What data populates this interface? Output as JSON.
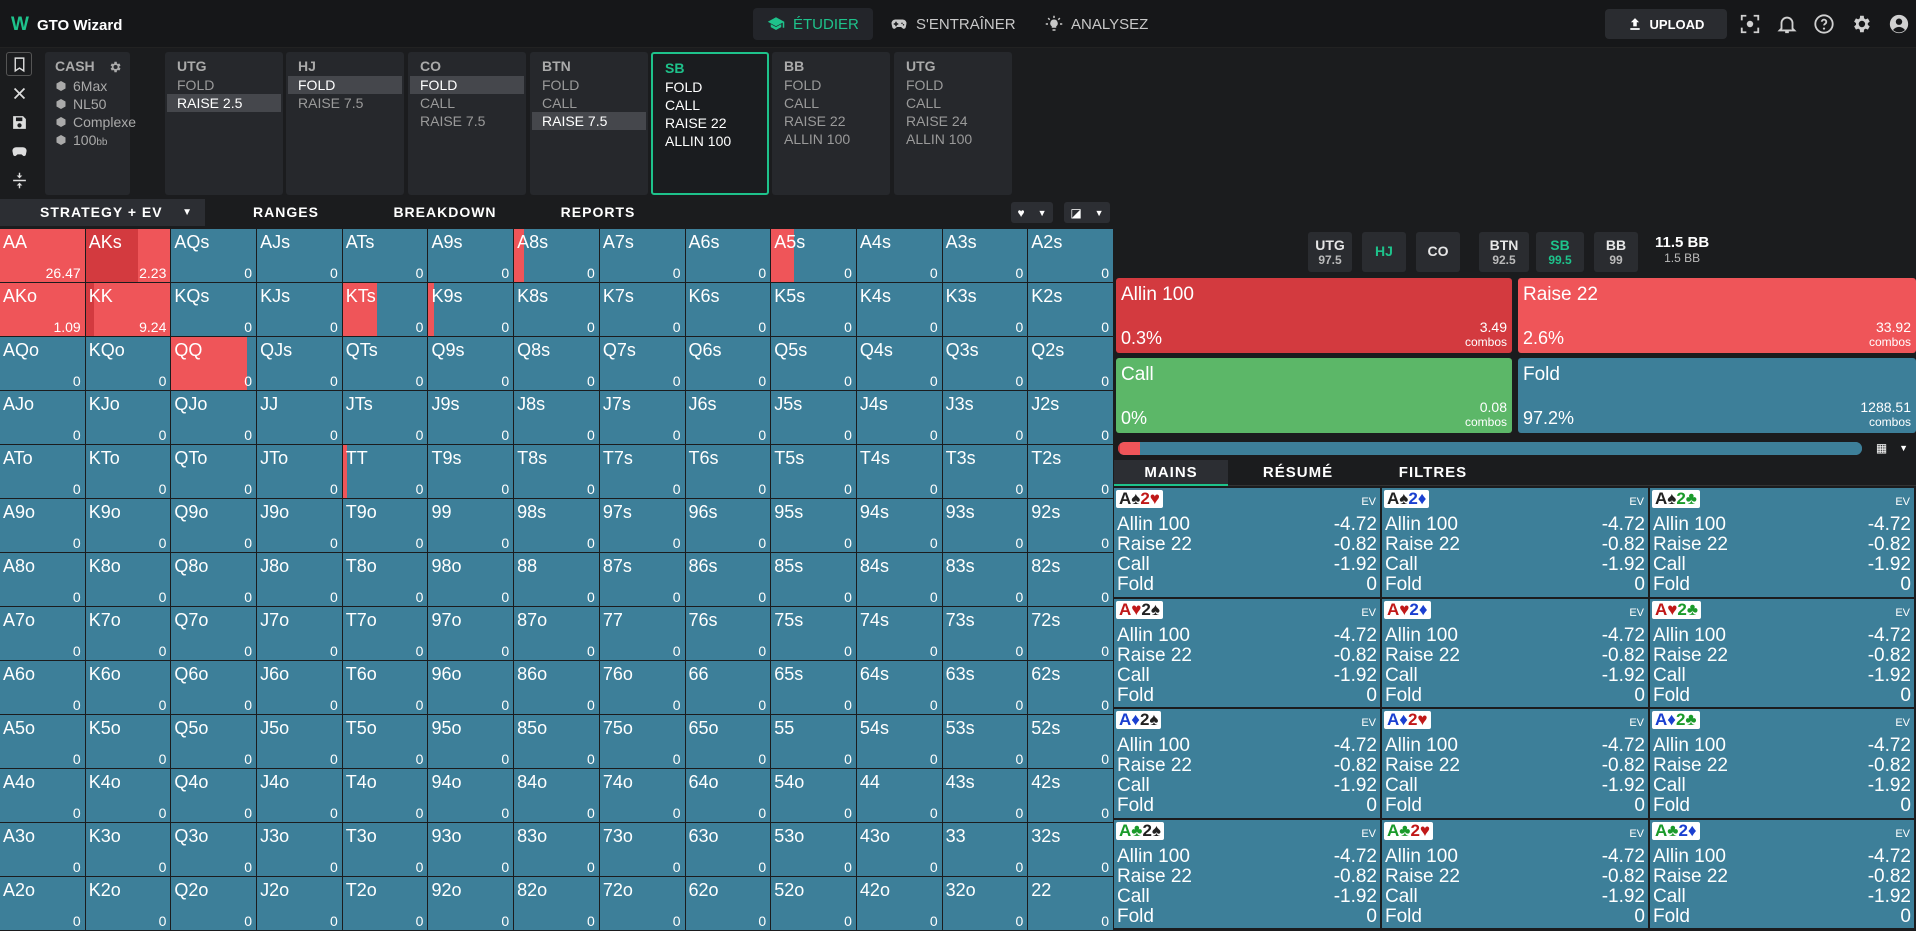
{
  "app": {
    "name": "GTO Wizard"
  },
  "nav": {
    "study": "ÉTUDIER",
    "train": "S'ENTRAÎNER",
    "analyze": "ANALYSEZ",
    "upload": "UPLOAD"
  },
  "cash": {
    "title": "CASH",
    "items": [
      "6Max",
      "NL50",
      "Complexe",
      "100"
    ],
    "bb": "bb"
  },
  "cards": [
    {
      "pos": "UTG",
      "opts": [
        "FOLD",
        "RAISE 2.5"
      ],
      "sel": 1
    },
    {
      "pos": "HJ",
      "opts": [
        "FOLD",
        "RAISE 7.5"
      ],
      "sel": 0
    },
    {
      "pos": "CO",
      "opts": [
        "FOLD",
        "CALL",
        "RAISE 7.5"
      ],
      "sel": 0
    },
    {
      "pos": "BTN",
      "opts": [
        "FOLD",
        "CALL",
        "RAISE 7.5"
      ],
      "sel": 2
    },
    {
      "pos": "SB",
      "opts": [
        "FOLD",
        "CALL",
        "RAISE 22",
        "ALLIN 100"
      ],
      "sel": -1
    },
    {
      "pos": "BB",
      "opts": [
        "FOLD",
        "CALL",
        "RAISE 22",
        "ALLIN 100"
      ],
      "sel": -1
    },
    {
      "pos": "UTG",
      "opts": [
        "FOLD",
        "CALL",
        "RAISE 24",
        "ALLIN 100"
      ],
      "sel": -1
    }
  ],
  "tabs": [
    "STRATEGY + EV",
    "RANGES",
    "BREAKDOWN",
    "REPORTS"
  ],
  "grid": [
    [
      "AA",
      "AKs",
      "AQs",
      "AJs",
      "ATs",
      "A9s",
      "A8s",
      "A7s",
      "A6s",
      "A5s",
      "A4s",
      "A3s",
      "A2s"
    ],
    [
      "AKo",
      "KK",
      "KQs",
      "KJs",
      "KTs",
      "K9s",
      "K8s",
      "K7s",
      "K6s",
      "K5s",
      "K4s",
      "K3s",
      "K2s"
    ],
    [
      "AQo",
      "KQo",
      "QQ",
      "QJs",
      "QTs",
      "Q9s",
      "Q8s",
      "Q7s",
      "Q6s",
      "Q5s",
      "Q4s",
      "Q3s",
      "Q2s"
    ],
    [
      "AJo",
      "KJo",
      "QJo",
      "JJ",
      "JTs",
      "J9s",
      "J8s",
      "J7s",
      "J6s",
      "J5s",
      "J4s",
      "J3s",
      "J2s"
    ],
    [
      "ATo",
      "KTo",
      "QTo",
      "JTo",
      "TT",
      "T9s",
      "T8s",
      "T7s",
      "T6s",
      "T5s",
      "T4s",
      "T3s",
      "T2s"
    ],
    [
      "A9o",
      "K9o",
      "Q9o",
      "J9o",
      "T9o",
      "99",
      "98s",
      "97s",
      "96s",
      "95s",
      "94s",
      "93s",
      "92s"
    ],
    [
      "A8o",
      "K8o",
      "Q8o",
      "J8o",
      "T8o",
      "98o",
      "88",
      "87s",
      "86s",
      "85s",
      "84s",
      "83s",
      "82s"
    ],
    [
      "A7o",
      "K7o",
      "Q7o",
      "J7o",
      "T7o",
      "97o",
      "87o",
      "77",
      "76s",
      "75s",
      "74s",
      "73s",
      "72s"
    ],
    [
      "A6o",
      "K6o",
      "Q6o",
      "J6o",
      "T6o",
      "96o",
      "86o",
      "76o",
      "66",
      "65s",
      "64s",
      "63s",
      "62s"
    ],
    [
      "A5o",
      "K5o",
      "Q5o",
      "J5o",
      "T5o",
      "95o",
      "85o",
      "75o",
      "65o",
      "55",
      "54s",
      "53s",
      "52s"
    ],
    [
      "A4o",
      "K4o",
      "Q4o",
      "J4o",
      "T4o",
      "94o",
      "84o",
      "74o",
      "64o",
      "54o",
      "44",
      "43s",
      "42s"
    ],
    [
      "A3o",
      "K3o",
      "Q3o",
      "J3o",
      "T3o",
      "93o",
      "83o",
      "73o",
      "63o",
      "53o",
      "43o",
      "33",
      "32s"
    ],
    [
      "A2o",
      "K2o",
      "Q2o",
      "J2o",
      "T2o",
      "92o",
      "82o",
      "72o",
      "62o",
      "52o",
      "42o",
      "32o",
      "22"
    ]
  ],
  "grid_ev_default": "0",
  "grid_special": {
    "AA": {
      "ev": "26.47",
      "red": 1.0,
      "dark": 0
    },
    "AKs": {
      "ev": "2.23",
      "red": 1.0,
      "dark": 0.62
    },
    "A8s": {
      "ev": "0",
      "red": 0.12,
      "dark": 0
    },
    "A5s": {
      "ev": "0",
      "red": 0.27,
      "dark": 0
    },
    "AKo": {
      "ev": "1.09",
      "red": 1.0,
      "dark": 0
    },
    "KK": {
      "ev": "9.24",
      "red": 1.0,
      "dark": 0.1
    },
    "KTs": {
      "ev": "0",
      "red": 0.4,
      "dark": 0
    },
    "K9s": {
      "ev": "0",
      "red": 0.07,
      "dark": 0
    },
    "QQ": {
      "ev": "0",
      "red": 0.89,
      "dark": 0
    },
    "TT": {
      "ev": "0",
      "red": 0.05,
      "dark": 0
    }
  },
  "seats": [
    {
      "pos": "UTG",
      "stack": "97.5"
    },
    {
      "pos": "HJ",
      "stack": ""
    },
    {
      "pos": "CO",
      "stack": ""
    },
    {
      "pos": "BTN",
      "stack": "92.5"
    },
    {
      "pos": "SB",
      "stack": "99.5"
    },
    {
      "pos": "BB",
      "stack": "99"
    }
  ],
  "pot": {
    "main": "11.5 BB",
    "sub": "1.5 BB"
  },
  "actions": [
    {
      "name": "Allin 100",
      "pct": "0.3%",
      "combos": "3.49",
      "label": "combos",
      "color": "#d33a3f"
    },
    {
      "name": "Raise 22",
      "pct": "2.6%",
      "combos": "33.92",
      "label": "combos",
      "color": "#ef5559"
    },
    {
      "name": "Call",
      "pct": "0%",
      "combos": "0.08",
      "label": "combos",
      "color": "#5cb768"
    },
    {
      "name": "Fold",
      "pct": "97.2%",
      "combos": "1288.51",
      "label": "combos",
      "color": "#3d7f99"
    }
  ],
  "freq": {
    "allin": 0.003,
    "raise": 0.026,
    "call": 0.0,
    "fold": 0.972
  },
  "rtabs": [
    "MAINS",
    "RÉSUMÉ",
    "FILTRES"
  ],
  "ev_label": "EV",
  "hand_rows": [
    [
      "Allin 100",
      "-4.72"
    ],
    [
      "Raise 22",
      "-0.82"
    ],
    [
      "Call",
      "-1.92"
    ],
    [
      "Fold",
      "0"
    ]
  ],
  "hands": [
    [
      {
        "r1": "A",
        "s1": "♠",
        "c1": "#222",
        "r2": "2",
        "s2": "♥",
        "c2": "#c01818"
      },
      {
        "r1": "A",
        "s1": "♠",
        "c1": "#222",
        "r2": "2",
        "s2": "♦",
        "c2": "#1a3fd0"
      },
      {
        "r1": "A",
        "s1": "♠",
        "c1": "#222",
        "r2": "2",
        "s2": "♣",
        "c2": "#1a9a2a"
      }
    ],
    [
      {
        "r1": "A",
        "s1": "♥",
        "c1": "#c01818",
        "r2": "2",
        "s2": "♠",
        "c2": "#222"
      },
      {
        "r1": "A",
        "s1": "♥",
        "c1": "#c01818",
        "r2": "2",
        "s2": "♦",
        "c2": "#1a3fd0"
      },
      {
        "r1": "A",
        "s1": "♥",
        "c1": "#c01818",
        "r2": "2",
        "s2": "♣",
        "c2": "#1a9a2a"
      }
    ],
    [
      {
        "r1": "A",
        "s1": "♦",
        "c1": "#1a3fd0",
        "r2": "2",
        "s2": "♠",
        "c2": "#222"
      },
      {
        "r1": "A",
        "s1": "♦",
        "c1": "#1a3fd0",
        "r2": "2",
        "s2": "♥",
        "c2": "#c01818"
      },
      {
        "r1": "A",
        "s1": "♦",
        "c1": "#1a3fd0",
        "r2": "2",
        "s2": "♣",
        "c2": "#1a9a2a"
      }
    ],
    [
      {
        "r1": "A",
        "s1": "♣",
        "c1": "#1a9a2a",
        "r2": "2",
        "s2": "♠",
        "c2": "#222"
      },
      {
        "r1": "A",
        "s1": "♣",
        "c1": "#1a9a2a",
        "r2": "2",
        "s2": "♥",
        "c2": "#c01818"
      },
      {
        "r1": "A",
        "s1": "♣",
        "c1": "#1a9a2a",
        "r2": "2",
        "s2": "♦",
        "c2": "#1a3fd0"
      }
    ]
  ]
}
